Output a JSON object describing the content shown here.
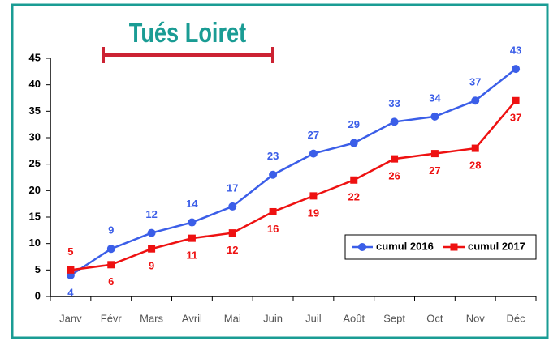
{
  "chart_data": {
    "type": "line",
    "title": "Tués Loiret",
    "categories": [
      "Janv",
      "Févr",
      "Mars",
      "Avril",
      "Mai",
      "Juin",
      "Juil",
      "Août",
      "Sept",
      "Oct",
      "Nov",
      "Déc"
    ],
    "series": [
      {
        "name": "cumul 2016",
        "color": "#3b5ee8",
        "marker": "circle",
        "values": [
          4,
          9,
          12,
          14,
          17,
          23,
          27,
          29,
          33,
          34,
          37,
          43
        ]
      },
      {
        "name": "cumul 2017",
        "color": "#ee1111",
        "marker": "square",
        "values": [
          5,
          6,
          9,
          11,
          12,
          16,
          19,
          22,
          26,
          27,
          28,
          37
        ]
      }
    ],
    "ylim": [
      0,
      45
    ],
    "yticks": [
      0,
      5,
      10,
      15,
      20,
      25,
      30,
      35,
      40,
      45
    ],
    "legend": "lower right",
    "grid": false
  }
}
